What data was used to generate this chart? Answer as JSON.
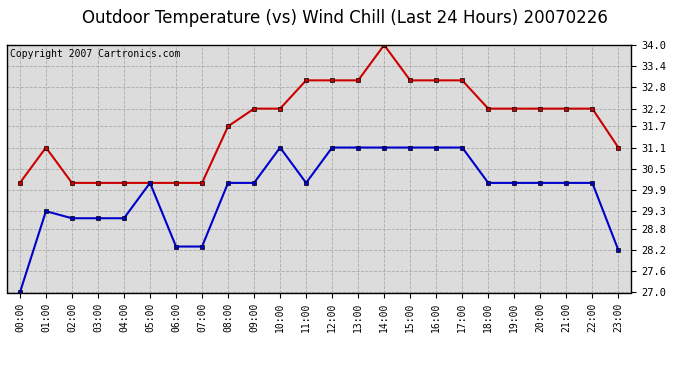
{
  "title": "Outdoor Temperature (vs) Wind Chill (Last 24 Hours) 20070226",
  "copyright": "Copyright 2007 Cartronics.com",
  "hours": [
    "00:00",
    "01:00",
    "02:00",
    "03:00",
    "04:00",
    "05:00",
    "06:00",
    "07:00",
    "08:00",
    "09:00",
    "10:00",
    "11:00",
    "12:00",
    "13:00",
    "14:00",
    "15:00",
    "16:00",
    "17:00",
    "18:00",
    "19:00",
    "20:00",
    "21:00",
    "22:00",
    "23:00"
  ],
  "temp": [
    30.1,
    31.1,
    30.1,
    30.1,
    30.1,
    30.1,
    30.1,
    30.1,
    31.7,
    32.2,
    32.2,
    33.0,
    33.0,
    33.0,
    34.0,
    33.0,
    33.0,
    33.0,
    32.2,
    32.2,
    32.2,
    32.2,
    32.2,
    31.1
  ],
  "windchill": [
    27.0,
    29.3,
    29.1,
    29.1,
    29.1,
    30.1,
    28.3,
    28.3,
    30.1,
    30.1,
    31.1,
    30.1,
    31.1,
    31.1,
    31.1,
    31.1,
    31.1,
    31.1,
    30.1,
    30.1,
    30.1,
    30.1,
    30.1,
    28.2
  ],
  "temp_color": "#cc0000",
  "windchill_color": "#0000cc",
  "background_color": "#ffffff",
  "plot_bg_color": "#dcdcdc",
  "grid_color": "#aaaaaa",
  "ylim_min": 27.0,
  "ylim_max": 34.0,
  "yticks": [
    27.0,
    27.6,
    28.2,
    28.8,
    29.3,
    29.9,
    30.5,
    31.1,
    31.7,
    32.2,
    32.8,
    33.4,
    34.0
  ],
  "title_fontsize": 12,
  "copyright_fontsize": 7
}
